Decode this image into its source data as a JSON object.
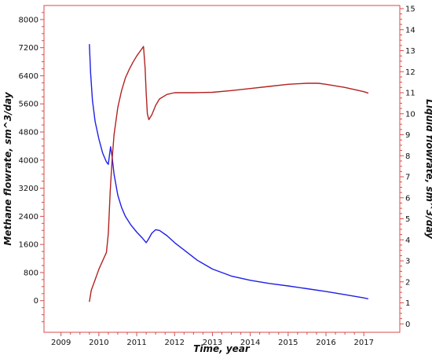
{
  "chart_data": {
    "type": "line",
    "title": "",
    "xlabel": "Time, year",
    "ylabel_left": "Methane flowrate, sm^3/day",
    "ylabel_right": "Liquid flowrate, sm^3/day",
    "xlim": [
      2008.55,
      2017.95
    ],
    "ylim_left": [
      -900,
      8400
    ],
    "ylim_right": [
      -0.4,
      15.15
    ],
    "x_ticks": [
      2009,
      2010,
      2011,
      2012,
      2013,
      2014,
      2015,
      2016,
      2017
    ],
    "y_left_ticks": [
      0,
      800,
      1600,
      2400,
      3200,
      4000,
      4800,
      5600,
      6400,
      7200,
      8000
    ],
    "y_right_ticks": [
      0,
      1,
      2,
      3,
      4,
      5,
      6,
      7,
      8,
      9,
      10,
      11,
      12,
      13,
      14,
      15
    ],
    "grid": false,
    "legend": "none",
    "colors": {
      "frame": "#d94a4a",
      "methane": "#1f1fe6",
      "liquid": "#b22222",
      "text": "#111111"
    },
    "series": [
      {
        "axis": "left",
        "color": "#1f1fe6",
        "points": [
          [
            2009.75,
            7300
          ],
          [
            2009.78,
            6500
          ],
          [
            2009.83,
            5700
          ],
          [
            2009.9,
            5100
          ],
          [
            2010.0,
            4600
          ],
          [
            2010.1,
            4200
          ],
          [
            2010.2,
            3950
          ],
          [
            2010.25,
            3880
          ],
          [
            2010.28,
            4150
          ],
          [
            2010.31,
            4380
          ],
          [
            2010.35,
            4100
          ],
          [
            2010.4,
            3600
          ],
          [
            2010.5,
            3000
          ],
          [
            2010.6,
            2650
          ],
          [
            2010.7,
            2400
          ],
          [
            2010.85,
            2150
          ],
          [
            2011.0,
            1950
          ],
          [
            2011.15,
            1780
          ],
          [
            2011.25,
            1650
          ],
          [
            2011.3,
            1730
          ],
          [
            2011.4,
            1920
          ],
          [
            2011.5,
            2020
          ],
          [
            2011.6,
            2000
          ],
          [
            2011.8,
            1850
          ],
          [
            2012.0,
            1650
          ],
          [
            2012.3,
            1400
          ],
          [
            2012.6,
            1150
          ],
          [
            2013.0,
            900
          ],
          [
            2013.5,
            700
          ],
          [
            2014.0,
            580
          ],
          [
            2014.5,
            490
          ],
          [
            2015.0,
            420
          ],
          [
            2015.5,
            340
          ],
          [
            2016.0,
            260
          ],
          [
            2016.5,
            170
          ],
          [
            2017.0,
            80
          ],
          [
            2017.12,
            50
          ]
        ]
      },
      {
        "axis": "right",
        "color": "#b22222",
        "points": [
          [
            2009.75,
            1.05
          ],
          [
            2009.8,
            1.6
          ],
          [
            2009.9,
            2.1
          ],
          [
            2010.0,
            2.6
          ],
          [
            2010.1,
            3.0
          ],
          [
            2010.2,
            3.4
          ],
          [
            2010.25,
            4.3
          ],
          [
            2010.3,
            6.3
          ],
          [
            2010.35,
            7.8
          ],
          [
            2010.4,
            9.0
          ],
          [
            2010.5,
            10.3
          ],
          [
            2010.6,
            11.1
          ],
          [
            2010.7,
            11.7
          ],
          [
            2010.8,
            12.1
          ],
          [
            2010.9,
            12.45
          ],
          [
            2011.0,
            12.75
          ],
          [
            2011.1,
            13.0
          ],
          [
            2011.18,
            13.2
          ],
          [
            2011.22,
            12.2
          ],
          [
            2011.25,
            11.0
          ],
          [
            2011.28,
            10.0
          ],
          [
            2011.32,
            9.72
          ],
          [
            2011.4,
            9.95
          ],
          [
            2011.5,
            10.4
          ],
          [
            2011.6,
            10.7
          ],
          [
            2011.8,
            10.92
          ],
          [
            2012.0,
            11.0
          ],
          [
            2012.5,
            11.0
          ],
          [
            2013.0,
            11.02
          ],
          [
            2013.5,
            11.1
          ],
          [
            2014.0,
            11.2
          ],
          [
            2014.5,
            11.3
          ],
          [
            2015.0,
            11.4
          ],
          [
            2015.5,
            11.45
          ],
          [
            2015.8,
            11.45
          ],
          [
            2016.0,
            11.4
          ],
          [
            2016.5,
            11.25
          ],
          [
            2017.0,
            11.05
          ],
          [
            2017.12,
            10.98
          ]
        ]
      }
    ]
  }
}
